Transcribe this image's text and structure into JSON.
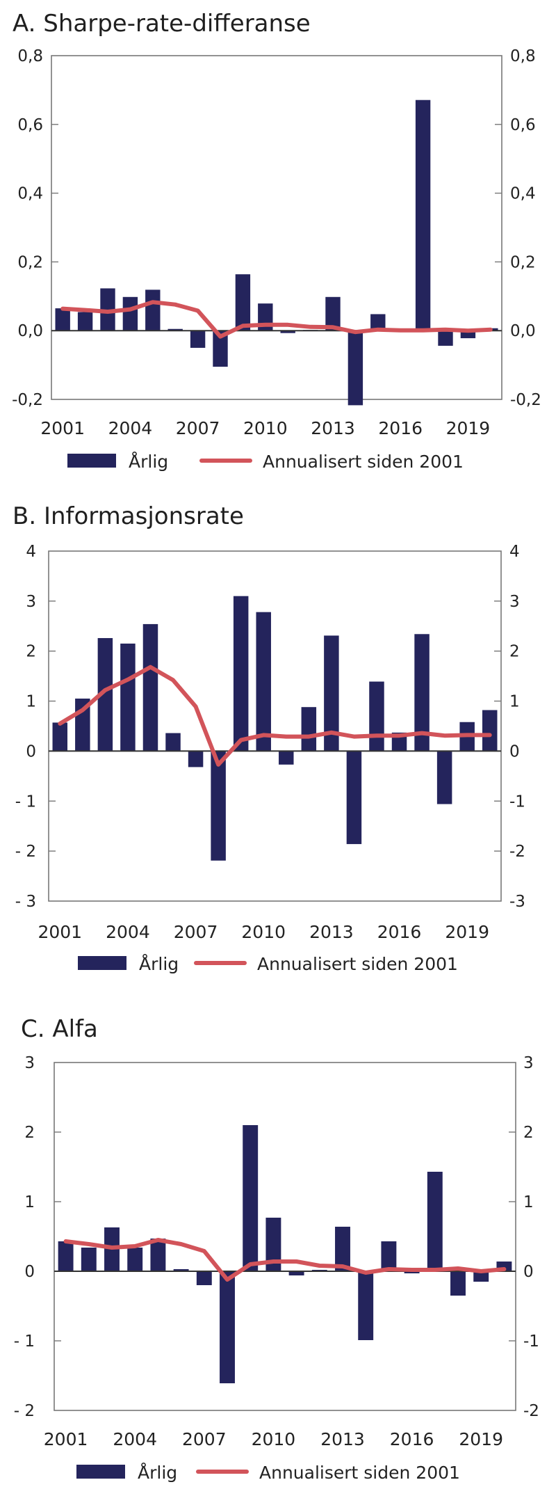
{
  "colors": {
    "bar": "#24245c",
    "line": "#d2545a"
  },
  "legend": {
    "bar_label": "Årlig",
    "line_label": "Annualisert siden 2001"
  },
  "chart_data": [
    {
      "id": "A",
      "type": "bar",
      "title": "A.  Sharpe-rate-differanse",
      "xlabel": "",
      "ylabel": "",
      "ylim": [
        -0.2,
        0.8
      ],
      "yticks": [
        -0.2,
        0.0,
        0.2,
        0.4,
        0.6,
        0.8
      ],
      "ytick_labels_left": [
        "-0,2",
        "0,0",
        "0,2",
        "0,4",
        "0,6",
        "0,8"
      ],
      "ytick_labels_right": [
        "-0,2",
        "0,0",
        "0,2",
        "0,4",
        "0,6",
        "0,8"
      ],
      "categories": [
        2001,
        2002,
        2003,
        2004,
        2005,
        2006,
        2007,
        2008,
        2009,
        2010,
        2011,
        2012,
        2013,
        2014,
        2015,
        2016,
        2017,
        2018,
        2019,
        2020
      ],
      "xtick_labels": [
        "2001",
        "2004",
        "2007",
        "2010",
        "2013",
        "2016",
        "2019"
      ],
      "grid": false,
      "legend_position": "bottom",
      "series": [
        {
          "name": "Årlig",
          "kind": "bar",
          "values": [
            0.065,
            0.054,
            0.123,
            0.098,
            0.119,
            0.005,
            -0.05,
            -0.105,
            0.164,
            0.079,
            -0.007,
            0.002,
            0.098,
            -0.217,
            0.048,
            -0.002,
            0.671,
            -0.044,
            -0.022,
            0.007
          ]
        },
        {
          "name": "Annualisert siden 2001",
          "kind": "line",
          "values": [
            0.064,
            0.06,
            0.055,
            0.062,
            0.083,
            0.076,
            0.058,
            -0.017,
            0.014,
            0.017,
            0.017,
            0.011,
            0.01,
            -0.004,
            0.003,
            0.001,
            0.001,
            0.003,
            0.0,
            0.003
          ]
        }
      ]
    },
    {
      "id": "B",
      "type": "bar",
      "title": "B.  Informasjonsrate",
      "xlabel": "",
      "ylabel": "",
      "ylim": [
        -3,
        4
      ],
      "yticks": [
        -3,
        -2,
        -1,
        0,
        1,
        2,
        3,
        4
      ],
      "ytick_labels_left": [
        "- 3",
        "- 2",
        "- 1",
        "0",
        "1",
        "2",
        "3",
        "4"
      ],
      "ytick_labels_right": [
        "-3",
        "-2",
        "-1",
        "0",
        "1",
        "2",
        "3",
        "4"
      ],
      "categories": [
        2001,
        2002,
        2003,
        2004,
        2005,
        2006,
        2007,
        2008,
        2009,
        2010,
        2011,
        2012,
        2013,
        2014,
        2015,
        2016,
        2017,
        2018,
        2019,
        2020
      ],
      "xtick_labels": [
        "2001",
        "2004",
        "2007",
        "2010",
        "2013",
        "2016",
        "2019"
      ],
      "grid": false,
      "legend_position": "bottom",
      "series": [
        {
          "name": "Årlig",
          "kind": "bar",
          "values": [
            0.57,
            1.05,
            2.26,
            2.15,
            2.54,
            0.36,
            -0.32,
            -2.19,
            3.1,
            2.78,
            -0.27,
            0.88,
            2.31,
            -1.86,
            1.39,
            0.37,
            2.34,
            -1.06,
            0.58,
            0.82
          ]
        },
        {
          "name": "Annualisert siden 2001",
          "kind": "line",
          "values": [
            0.55,
            0.82,
            1.22,
            1.43,
            1.68,
            1.42,
            0.89,
            -0.27,
            0.22,
            0.32,
            0.29,
            0.29,
            0.37,
            0.29,
            0.31,
            0.31,
            0.36,
            0.31,
            0.32,
            0.32
          ]
        }
      ]
    },
    {
      "id": "C",
      "type": "bar",
      "title": "C.  Alfa",
      "xlabel": "",
      "ylabel": "",
      "ylim": [
        -2,
        3
      ],
      "yticks": [
        -2,
        -1,
        0,
        1,
        2,
        3
      ],
      "ytick_labels_left": [
        "- 2",
        "- 1",
        "0",
        "1",
        "2",
        "3"
      ],
      "ytick_labels_right": [
        "-2",
        "-1",
        "0",
        "1",
        "2",
        "3"
      ],
      "categories": [
        2001,
        2002,
        2003,
        2004,
        2005,
        2006,
        2007,
        2008,
        2009,
        2010,
        2011,
        2012,
        2013,
        2014,
        2015,
        2016,
        2017,
        2018,
        2019,
        2020
      ],
      "xtick_labels": [
        "2001",
        "2004",
        "2007",
        "2010",
        "2013",
        "2016",
        "2019"
      ],
      "grid": false,
      "legend_position": "bottom",
      "series": [
        {
          "name": "Årlig",
          "kind": "bar",
          "values": [
            0.43,
            0.34,
            0.63,
            0.34,
            0.47,
            0.03,
            -0.2,
            -1.61,
            2.1,
            0.77,
            -0.06,
            0.02,
            0.64,
            -0.99,
            0.43,
            -0.03,
            1.43,
            -0.35,
            -0.15,
            0.14
          ]
        },
        {
          "name": "Annualisert siden 2001",
          "kind": "line",
          "values": [
            0.43,
            0.39,
            0.34,
            0.36,
            0.45,
            0.39,
            0.29,
            -0.12,
            0.1,
            0.14,
            0.14,
            0.08,
            0.07,
            -0.02,
            0.03,
            0.02,
            0.02,
            0.04,
            0.0,
            0.03
          ]
        }
      ]
    }
  ]
}
